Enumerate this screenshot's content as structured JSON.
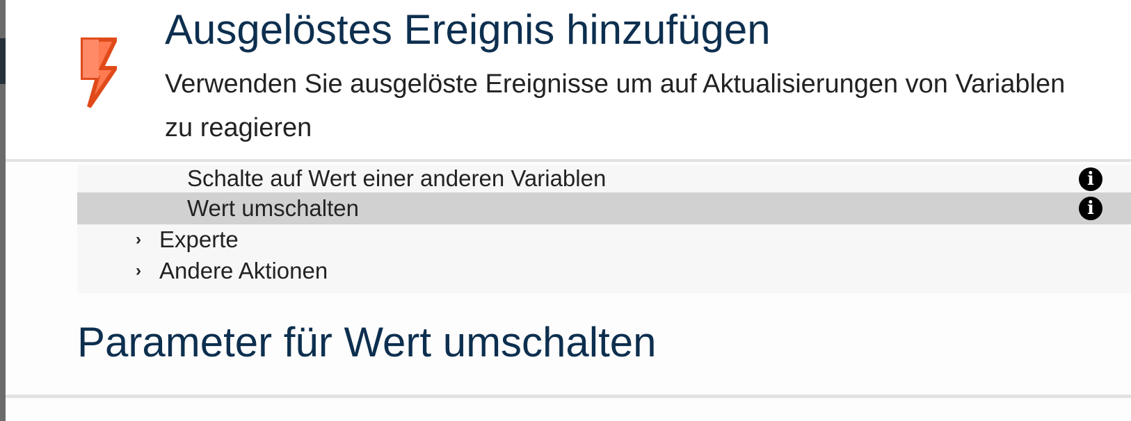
{
  "header": {
    "icon": "lightning-bolt-icon",
    "title": "Ausgelöstes Ereignis hinzufügen",
    "description": "Verwenden Sie ausgelöste Ereignisse um auf Aktualisierungen von Variablen zu reagieren"
  },
  "list": {
    "items": [
      {
        "label": "Schalte auf Wert einer anderen Variablen",
        "selected": false,
        "info_icon": "info-icon"
      },
      {
        "label": "Wert umschalten",
        "selected": true,
        "info_icon": "info-icon"
      }
    ],
    "groups": [
      {
        "label": "Experte",
        "chevron": "›"
      },
      {
        "label": "Andere Aktionen",
        "chevron": "›"
      }
    ]
  },
  "parameters": {
    "title": "Parameter für Wert umschalten"
  },
  "colors": {
    "accent": "#0d2f4f",
    "bolt": "#ff7043",
    "bolt_border": "#e64a19",
    "selected_row": "#d1d1d1"
  }
}
